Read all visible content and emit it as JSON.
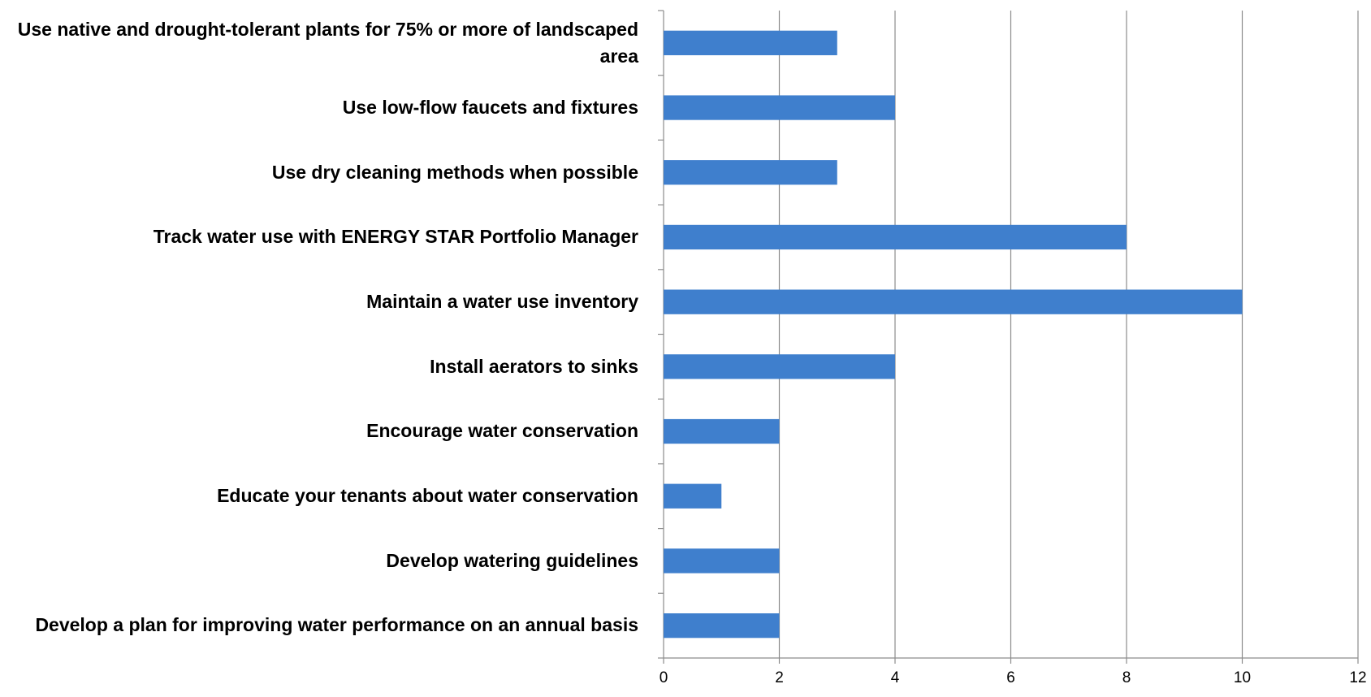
{
  "chart_data": {
    "type": "bar",
    "orientation": "horizontal",
    "categories": [
      "Use native and drought-tolerant plants for 75% or more of landscaped area",
      "Use low-flow faucets and fixtures",
      "Use dry cleaning methods when possible",
      "Track water use with ENERGY STAR Portfolio Manager",
      "Maintain a water use inventory",
      "Install aerators to sinks",
      "Encourage water conservation",
      "Educate your tenants about water conservation",
      "Develop watering guidelines",
      "Develop a plan for improving water performance on an annual basis"
    ],
    "values": [
      3,
      4,
      3,
      8,
      10,
      4,
      2,
      1,
      2,
      2
    ],
    "color": "#3f7fcd",
    "xlim": [
      0,
      12
    ],
    "xticks": [
      0,
      2,
      4,
      6,
      8,
      10,
      12
    ],
    "grid": true
  }
}
